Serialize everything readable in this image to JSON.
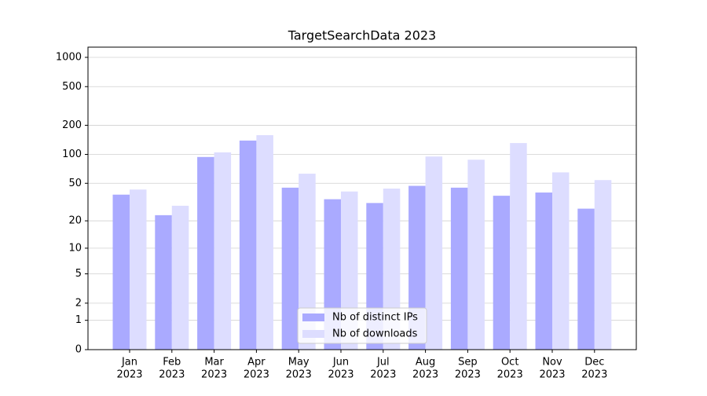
{
  "chart_data": {
    "type": "bar",
    "title": "TargetSearchData 2023",
    "categories": [
      [
        "Jan",
        "2023"
      ],
      [
        "Feb",
        "2023"
      ],
      [
        "Mar",
        "2023"
      ],
      [
        "Apr",
        "2023"
      ],
      [
        "May",
        "2023"
      ],
      [
        "Jun",
        "2023"
      ],
      [
        "Jul",
        "2023"
      ],
      [
        "Aug",
        "2023"
      ],
      [
        "Sep",
        "2023"
      ],
      [
        "Oct",
        "2023"
      ],
      [
        "Nov",
        "2023"
      ],
      [
        "Dec",
        "2023"
      ]
    ],
    "series": [
      {
        "name": "Nb of distinct IPs",
        "color": "#aaaaff",
        "values": [
          38,
          23,
          94,
          139,
          45,
          34,
          31,
          47,
          45,
          37,
          40,
          27
        ]
      },
      {
        "name": "Nb of downloads",
        "color": "#ddddff",
        "values": [
          43,
          29,
          105,
          158,
          63,
          41,
          44,
          95,
          88,
          131,
          65,
          54
        ]
      }
    ],
    "yscale": "log1p",
    "ylim": [
      0,
      1273
    ],
    "yticks": [
      0,
      1,
      2,
      5,
      10,
      20,
      50,
      100,
      200,
      500,
      1000
    ],
    "grid": true,
    "legend": "lower center"
  }
}
